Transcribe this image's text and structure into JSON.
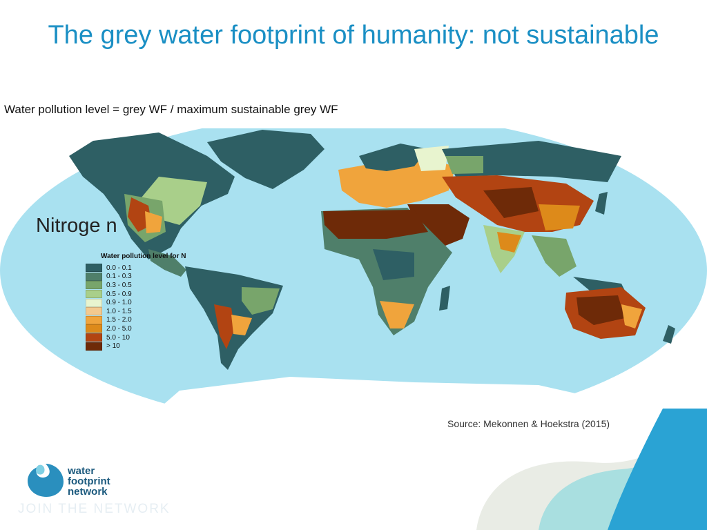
{
  "title": "The grey water footprint of humanity: not sustainable",
  "subtitle": "Water pollution level = grey WF / maximum sustainable grey WF",
  "map_label": "Nitroge n",
  "legend": {
    "title": "Water pollution level for N",
    "items": [
      {
        "label": "0.0 - 0.1",
        "color": "#2e5f64"
      },
      {
        "label": "0.1 - 0.3",
        "color": "#4f7f6a"
      },
      {
        "label": "0.3 - 0.5",
        "color": "#78a56b"
      },
      {
        "label": "0.5 - 0.9",
        "color": "#a9cf8a"
      },
      {
        "label": "0.9 - 1.0",
        "color": "#e8f4cf"
      },
      {
        "label": "1.0 - 1.5",
        "color": "#f3c98f"
      },
      {
        "label": "1.5 - 2.0",
        "color": "#f0a43c"
      },
      {
        "label": "2.0 - 5.0",
        "color": "#dd8a1a"
      },
      {
        "label": "5.0 - 10",
        "color": "#b24412"
      },
      {
        "label": "> 10",
        "color": "#6e2a08"
      }
    ]
  },
  "colors": {
    "ocean": "#a9e1f0",
    "title": "#1a8fc4",
    "brand_blue": "#2aa3d4"
  },
  "source": "Source: Mekonnen & Hoekstra (2015)",
  "logo": {
    "line1": "water",
    "line2": "footprint",
    "line3": "network"
  },
  "tagline": "JOIN THE NETWORK"
}
